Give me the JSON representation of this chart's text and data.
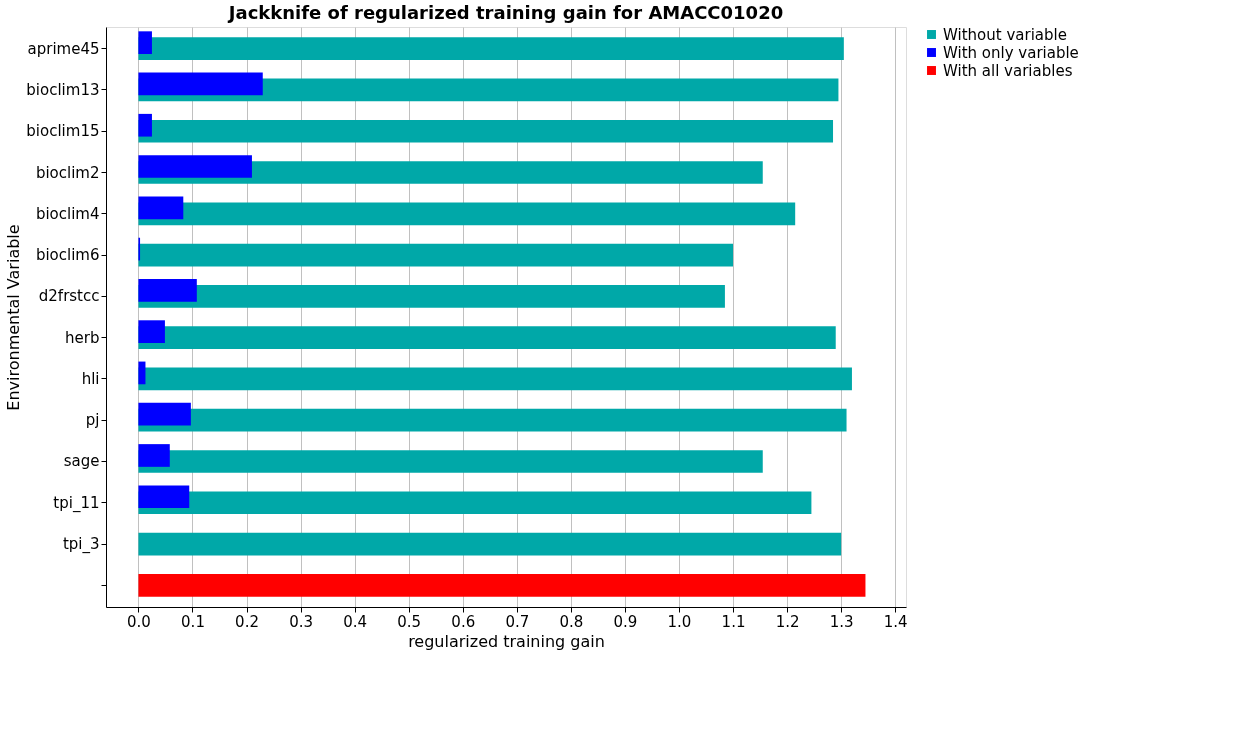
{
  "chart_data": {
    "type": "bar",
    "orientation": "horizontal",
    "title": "Jackknife of regularized training gain for AMACC01020",
    "xlabel": "regularized training gain",
    "ylabel": "Environmental Variable",
    "categories": [
      "aprime45",
      "bioclim13",
      "bioclim15",
      "bioclim2",
      "bioclim4",
      "bioclim6",
      "d2frstcc",
      "herb",
      "hli",
      "pj",
      "sage",
      "tpi_11",
      "tpi_3",
      null
    ],
    "series": [
      {
        "name": "Without variable",
        "color": "#00a8a8",
        "values": [
          1.305,
          1.295,
          1.285,
          1.155,
          1.215,
          1.1,
          1.085,
          1.29,
          1.32,
          1.31,
          1.155,
          1.245,
          1.3,
          null
        ]
      },
      {
        "name": "With only variable",
        "color": "#0000ff",
        "values": [
          0.025,
          0.23,
          0.025,
          0.21,
          0.083,
          0.003,
          0.108,
          0.049,
          0.013,
          0.097,
          0.058,
          0.094,
          0.0,
          null
        ]
      },
      {
        "name": "With all variables",
        "color": "#ff0000",
        "values": [
          null,
          null,
          null,
          null,
          null,
          null,
          null,
          null,
          null,
          null,
          null,
          null,
          null,
          1.345
        ]
      }
    ],
    "xlim": [
      -0.06,
      1.42
    ],
    "xticks": [
      {
        "value": 0,
        "label": "0.0"
      },
      0.1,
      0.2,
      0.3,
      0.4,
      0.5,
      0.6,
      0.7,
      0.8,
      0.9,
      {
        "value": 1,
        "label": "1.0"
      },
      1.1,
      1.2,
      1.3,
      1.4
    ],
    "grid": "x",
    "legend": "top right"
  }
}
